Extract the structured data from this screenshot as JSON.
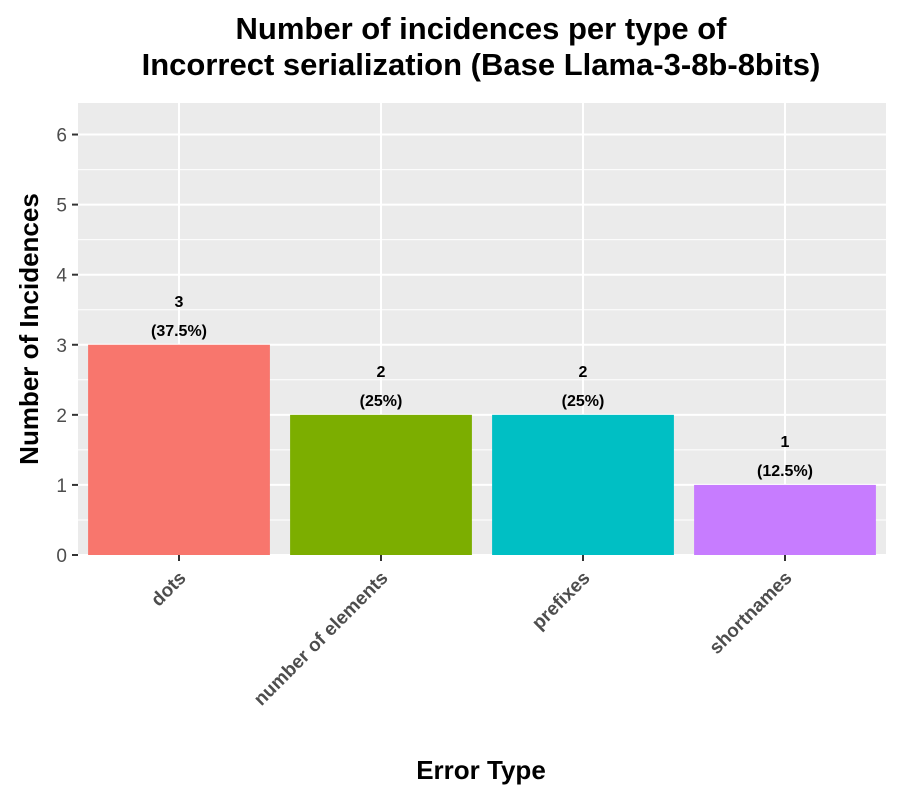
{
  "chart_data": {
    "type": "bar",
    "title": "Number of incidences per type of\nIncorrect serialization (Base Llama-3-8b-8bits)",
    "xlabel": "Error Type",
    "ylabel": "Number of Incidences",
    "categories": [
      "dots",
      "number of elements",
      "prefixes",
      "shortnames"
    ],
    "values": [
      3,
      2,
      2,
      1
    ],
    "data_labels": [
      [
        "3",
        "(37.5%)"
      ],
      [
        "2",
        "(25%)"
      ],
      [
        "2",
        "(25%)"
      ],
      [
        "1",
        "(12.5%)"
      ]
    ],
    "bar_colors": [
      "#F8766D",
      "#7CAE00",
      "#00BFC4",
      "#C77CFF"
    ],
    "ylim": [
      0,
      6.45
    ],
    "yticks": [
      0,
      1,
      2,
      3,
      4,
      5,
      6
    ],
    "grid": true,
    "legend": "none",
    "panel_background": "#EBEBEB",
    "grid_color": "#FFFFFF"
  }
}
